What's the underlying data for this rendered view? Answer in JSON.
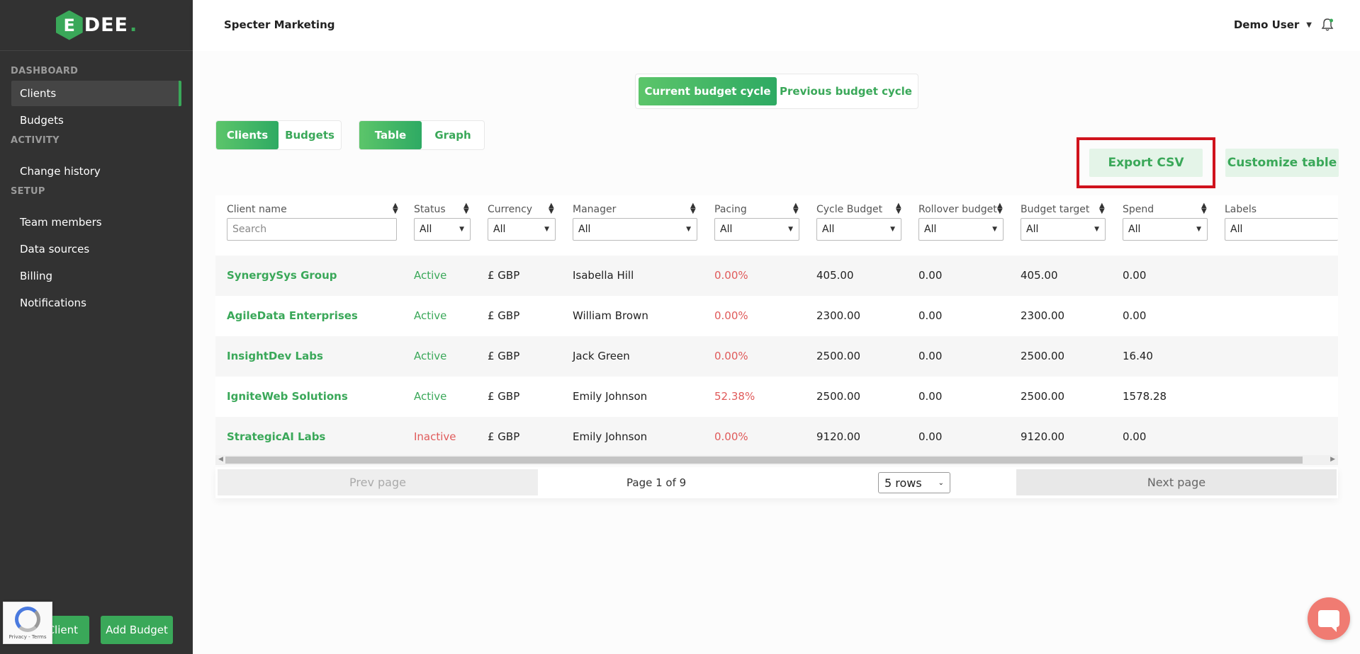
{
  "logo": {
    "mark": "E",
    "text": "DEE",
    "dot": "."
  },
  "sidebar": {
    "sections": [
      {
        "label": "DASHBOARD",
        "items": [
          {
            "label": "Clients",
            "active": true
          },
          {
            "label": "Budgets"
          }
        ]
      },
      {
        "label": "ACTIVITY",
        "items": [
          {
            "label": "Change history"
          }
        ]
      },
      {
        "label": "SETUP",
        "items": [
          {
            "label": "Team members"
          },
          {
            "label": "Data sources"
          },
          {
            "label": "Billing"
          },
          {
            "label": "Notifications"
          }
        ]
      }
    ],
    "add_client_label": "Client",
    "add_budget_label": "Add Budget",
    "recaptcha_text": "Privacy - Terms"
  },
  "header": {
    "company": "Specter Marketing",
    "user": "Demo User"
  },
  "cycle_tabs": {
    "current": "Current budget cycle",
    "previous": "Previous budget cycle"
  },
  "view_tabs": {
    "clients": "Clients",
    "budgets": "Budgets"
  },
  "mode_tabs": {
    "table": "Table",
    "graph": "Graph"
  },
  "actions": {
    "export": "Export CSV",
    "customize": "Customize table"
  },
  "table": {
    "columns": {
      "client_name": "Client name",
      "status": "Status",
      "currency": "Currency",
      "manager": "Manager",
      "pacing": "Pacing",
      "cycle_budget": "Cycle Budget",
      "rollover_budget": "Rollover budget",
      "budget_target": "Budget target",
      "spend": "Spend",
      "labels": "Labels"
    },
    "filters": {
      "search_placeholder": "Search",
      "all": "All"
    },
    "rows": [
      {
        "name": "SynergySys Group",
        "status": "Active",
        "currency": "£ GBP",
        "manager": "Isabella Hill",
        "pacing": "0.00%",
        "cycle_budget": "405.00",
        "rollover": "0.00",
        "target": "405.00",
        "spend": "0.00"
      },
      {
        "name": "AgileData Enterprises",
        "status": "Active",
        "currency": "£ GBP",
        "manager": "William Brown",
        "pacing": "0.00%",
        "cycle_budget": "2300.00",
        "rollover": "0.00",
        "target": "2300.00",
        "spend": "0.00"
      },
      {
        "name": "InsightDev Labs",
        "status": "Active",
        "currency": "£ GBP",
        "manager": "Jack Green",
        "pacing": "0.00%",
        "cycle_budget": "2500.00",
        "rollover": "0.00",
        "target": "2500.00",
        "spend": "16.40"
      },
      {
        "name": "IgniteWeb Solutions",
        "status": "Active",
        "currency": "£ GBP",
        "manager": "Emily Johnson",
        "pacing": "52.38%",
        "cycle_budget": "2500.00",
        "rollover": "0.00",
        "target": "2500.00",
        "spend": "1578.28"
      },
      {
        "name": "StrategicAI Labs",
        "status": "Inactive",
        "currency": "£ GBP",
        "manager": "Emily Johnson",
        "pacing": "0.00%",
        "cycle_budget": "9120.00",
        "rollover": "0.00",
        "target": "9120.00",
        "spend": "0.00"
      }
    ]
  },
  "pager": {
    "prev": "Prev page",
    "info": "Page 1 of 9",
    "rows": "5 rows",
    "next": "Next page"
  },
  "colors": {
    "accent": "#3aa859",
    "sidebar": "#323232",
    "negative": "#e05a5a",
    "highlight": "#d0121c"
  }
}
